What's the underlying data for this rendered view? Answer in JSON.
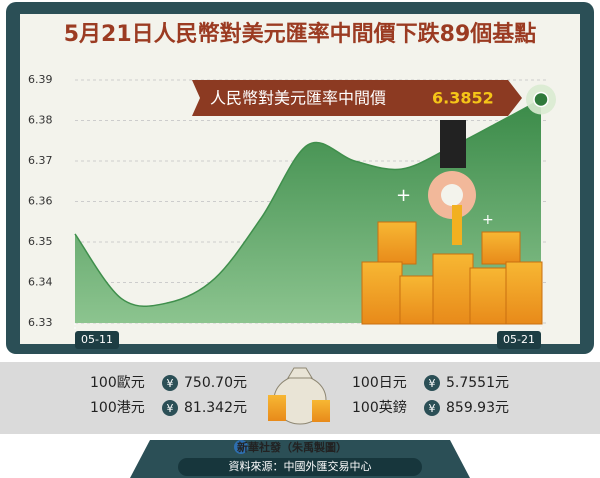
{
  "chart_data": {
    "type": "area",
    "title": "5月21日人民幣對美元匯率中間價下跌89個基點",
    "annotation": "人民幣對美元匯率中間價",
    "categories": [
      "05-11",
      null,
      null,
      null,
      null,
      null,
      null,
      null,
      null,
      null,
      "05-21"
    ],
    "values": [
      6.352,
      6.336,
      6.335,
      6.341,
      6.356,
      6.374,
      6.37,
      6.368,
      6.373,
      6.379,
      6.3852
    ],
    "color": "#3f8f4c",
    "ylim": [
      6.33,
      6.39
    ],
    "yticks": [
      6.33,
      6.34,
      6.35,
      6.36,
      6.37,
      6.38,
      6.39
    ],
    "grid": true
  },
  "rates": [
    {
      "unit": "100歐元",
      "symbol": "¥",
      "amount": "750.70元"
    },
    {
      "unit": "100日元",
      "symbol": "¥",
      "amount": "5.7551元"
    },
    {
      "unit": "100港元",
      "symbol": "¥",
      "amount": "81.342元"
    },
    {
      "unit": "100英鎊",
      "symbol": "¥",
      "amount": "859.93元"
    }
  ],
  "footer": {
    "agency": "新華社發（朱禹製圖）",
    "source": "資料來源：中國外匯交易中心"
  }
}
